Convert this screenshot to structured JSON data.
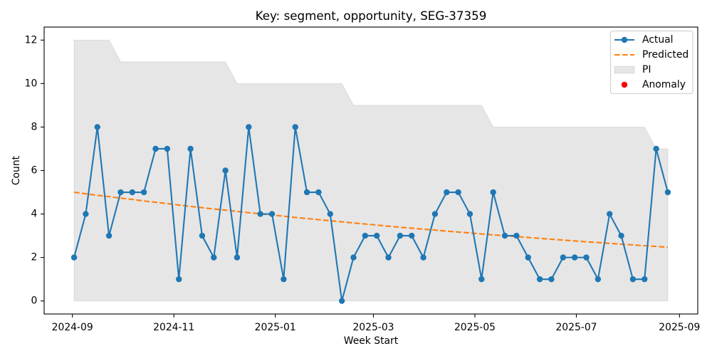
{
  "chart_data": {
    "type": "line",
    "title": "Key: segment, opportunity, SEG-37359",
    "xlabel": "Week Start",
    "ylabel": "Count",
    "x": [
      "2024-09-02",
      "2024-09-09",
      "2024-09-16",
      "2024-09-23",
      "2024-09-30",
      "2024-10-07",
      "2024-10-14",
      "2024-10-21",
      "2024-10-28",
      "2024-11-04",
      "2024-11-11",
      "2024-11-18",
      "2024-11-25",
      "2024-12-02",
      "2024-12-09",
      "2024-12-16",
      "2024-12-23",
      "2024-12-30",
      "2025-01-06",
      "2025-01-13",
      "2025-01-20",
      "2025-01-27",
      "2025-02-03",
      "2025-02-10",
      "2025-02-17",
      "2025-02-24",
      "2025-03-03",
      "2025-03-10",
      "2025-03-17",
      "2025-03-24",
      "2025-03-31",
      "2025-04-07",
      "2025-04-14",
      "2025-04-21",
      "2025-04-28",
      "2025-05-05",
      "2025-05-12",
      "2025-05-19",
      "2025-05-26",
      "2025-06-02",
      "2025-06-09",
      "2025-06-16",
      "2025-06-23",
      "2025-06-30",
      "2025-07-07",
      "2025-07-14",
      "2025-07-21",
      "2025-07-28",
      "2025-08-04",
      "2025-08-11",
      "2025-08-18",
      "2025-08-25"
    ],
    "series": [
      {
        "name": "Actual",
        "color": "#1f77b4",
        "linestyle": "solid",
        "marker": "circle",
        "values": [
          2,
          4,
          8,
          3,
          5,
          5,
          5,
          7,
          7,
          1,
          7,
          3,
          2,
          6,
          2,
          8,
          4,
          4,
          1,
          8,
          5,
          5,
          4,
          0,
          2,
          3,
          3,
          2,
          3,
          3,
          2,
          4,
          5,
          5,
          4,
          1,
          5,
          3,
          3,
          2,
          1,
          1,
          2,
          2,
          2,
          1,
          4,
          3,
          1,
          1,
          7,
          5
        ]
      },
      {
        "name": "Predicted",
        "color": "#ff7f0e",
        "linestyle": "dashed",
        "marker": "none",
        "values": [
          5.0,
          4.93,
          4.86,
          4.8,
          4.73,
          4.67,
          4.6,
          4.54,
          4.48,
          4.41,
          4.35,
          4.29,
          4.23,
          4.18,
          4.12,
          4.06,
          4.01,
          3.95,
          3.9,
          3.84,
          3.79,
          3.74,
          3.69,
          3.64,
          3.59,
          3.54,
          3.49,
          3.44,
          3.39,
          3.35,
          3.3,
          3.26,
          3.21,
          3.17,
          3.13,
          3.08,
          3.04,
          3.0,
          2.96,
          2.92,
          2.88,
          2.84,
          2.8,
          2.76,
          2.72,
          2.69,
          2.65,
          2.61,
          2.58,
          2.54,
          2.51,
          2.47
        ]
      }
    ],
    "interval": {
      "name": "PI",
      "color": "#808080",
      "lower": [
        0,
        0,
        0,
        0,
        0,
        0,
        0,
        0,
        0,
        0,
        0,
        0,
        0,
        0,
        0,
        0,
        0,
        0,
        0,
        0,
        0,
        0,
        0,
        0,
        0,
        0,
        0,
        0,
        0,
        0,
        0,
        0,
        0,
        0,
        0,
        0,
        0,
        0,
        0,
        0,
        0,
        0,
        0,
        0,
        0,
        0,
        0,
        0,
        0,
        0,
        0,
        0
      ],
      "upper": [
        12,
        12,
        12,
        12,
        11,
        11,
        11,
        11,
        11,
        11,
        11,
        11,
        11,
        11,
        10,
        10,
        10,
        10,
        10,
        10,
        10,
        10,
        10,
        10,
        9,
        9,
        9,
        9,
        9,
        9,
        9,
        9,
        9,
        9,
        9,
        9,
        8,
        8,
        8,
        8,
        8,
        8,
        8,
        8,
        8,
        8,
        8,
        8,
        8,
        8,
        7,
        7
      ]
    },
    "anomaly": {
      "name": "Anomaly",
      "color": "#ff0000",
      "x": [],
      "values": []
    },
    "xticks": [
      "2024-09",
      "2024-11",
      "2025-01",
      "2025-03",
      "2025-05",
      "2025-07",
      "2025-09"
    ],
    "yticks": [
      0,
      2,
      4,
      6,
      8,
      10,
      12
    ],
    "xlim": [
      "2024-08-15",
      "2025-09-12"
    ],
    "ylim": [
      -0.6,
      12.6
    ],
    "grid": false,
    "legend": "top-right"
  }
}
